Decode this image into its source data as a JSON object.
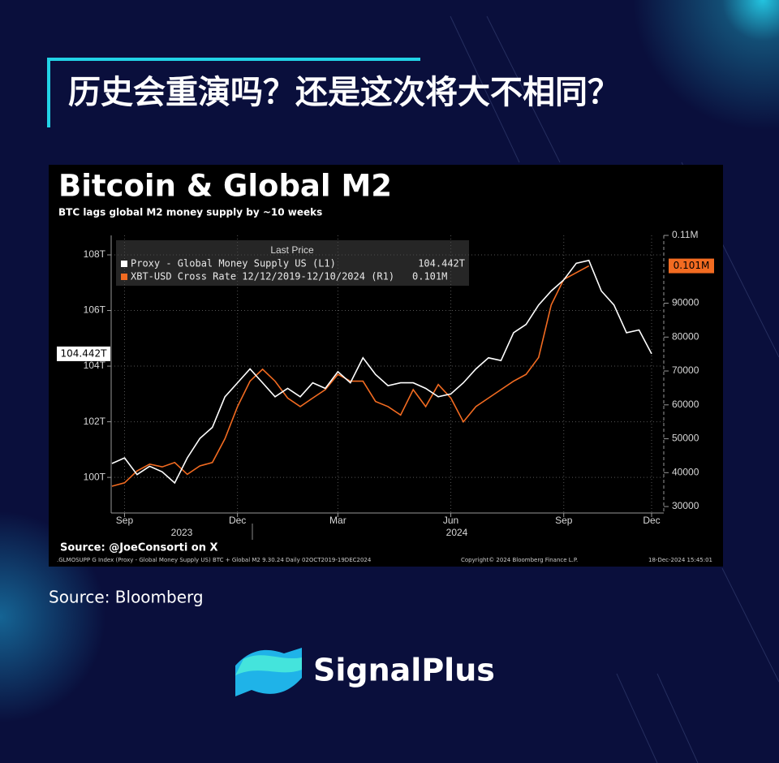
{
  "header": {
    "title": "历史会重演吗？还是这次将大不相同？"
  },
  "chart_data": {
    "type": "line",
    "title": "Bitcoin & Global M2",
    "subtitle": "BTC lags global M2 money supply by ~10 weeks",
    "legend_title": "Last Price",
    "source": "Source: @JoeConsorti on X",
    "footer_left": ".GLMOSUPP G Index (Proxy - Global Money Supply US) BTC + Global M2 9.30.24  Daily 02OCT2019-19DEC2024",
    "footer_center": "Copyright© 2024 Bloomberg Finance L.P.",
    "footer_right": "18-Dec-2024 15:45:01",
    "year_labels": [
      "2023",
      "2024"
    ],
    "categories": [
      null,
      "Sep",
      null,
      null,
      null,
      null,
      null,
      null,
      null,
      null,
      "Dec",
      null,
      null,
      null,
      null,
      null,
      null,
      null,
      "Mar",
      null,
      null,
      null,
      null,
      null,
      null,
      null,
      null,
      "Jun",
      null,
      null,
      null,
      null,
      null,
      null,
      null,
      null,
      "Sep",
      null,
      null,
      null,
      null,
      null,
      null,
      "Dec"
    ],
    "series": [
      {
        "name": "Proxy - Global Money Supply US  (L1)",
        "color": "#ffffff",
        "axis": "y",
        "values": [
          100.5,
          100.7,
          100.1,
          100.4,
          100.2,
          99.8,
          100.7,
          101.4,
          101.8,
          102.9,
          103.4,
          103.9,
          103.4,
          102.9,
          103.2,
          102.9,
          103.4,
          103.2,
          103.8,
          103.4,
          104.3,
          103.7,
          103.3,
          103.4,
          103.4,
          103.2,
          102.9,
          103.0,
          103.4,
          103.9,
          104.3,
          104.2,
          105.2,
          105.5,
          106.2,
          106.7,
          107.1,
          107.7,
          107.8,
          106.7,
          106.2,
          105.2,
          105.3,
          104.442
        ],
        "value_labels": [
          null,
          null,
          null,
          null,
          null,
          null,
          null,
          null,
          null,
          null,
          null,
          null,
          null,
          null,
          null,
          null,
          null,
          null,
          null,
          null,
          null,
          null,
          null,
          null,
          null,
          null,
          null,
          null,
          null,
          null,
          null,
          null,
          null,
          null,
          null,
          null,
          null,
          null,
          null,
          null,
          null,
          null,
          null,
          "104.442T"
        ]
      },
      {
        "name": "XBT-USD Cross Rate 12/12/2019-12/10/2024  (R1)",
        "color": "#f26b21",
        "axis": "y2",
        "values": [
          36000,
          37000,
          40500,
          42500,
          41700,
          43000,
          39500,
          42000,
          43000,
          50000,
          59500,
          67000,
          70500,
          67000,
          62000,
          59500,
          62000,
          64500,
          69000,
          67000,
          67000,
          61000,
          59500,
          57000,
          64500,
          59500,
          66000,
          62000,
          55000,
          59500,
          62000,
          64500,
          67000,
          69000,
          74000,
          89500,
          97000,
          99000,
          101000,
          null,
          null,
          null,
          null,
          null
        ],
        "value_labels": [
          null,
          null,
          null,
          null,
          null,
          null,
          null,
          null,
          null,
          null,
          null,
          null,
          null,
          null,
          null,
          null,
          null,
          null,
          null,
          null,
          null,
          null,
          null,
          null,
          null,
          null,
          null,
          null,
          null,
          null,
          null,
          null,
          null,
          null,
          null,
          null,
          null,
          null,
          "0.101M",
          null,
          null,
          null,
          null,
          null
        ]
      }
    ],
    "ylim": [
      98.72,
      108.7
    ],
    "yticks": [
      {
        "value": 100,
        "label": "100T"
      },
      {
        "value": 102,
        "label": "102T"
      },
      {
        "value": 104,
        "label": "104T"
      },
      {
        "value": 106,
        "label": "106T"
      },
      {
        "value": 108,
        "label": "108T"
      }
    ],
    "y2lim": [
      28100,
      110000
    ],
    "y2ticks": [
      30000,
      40000,
      50000,
      60000,
      70000,
      80000,
      90000,
      {
        "value": 110000,
        "label": "0.11M"
      }
    ],
    "grid": true
  },
  "source": "Source: Bloomberg",
  "brand": "SignalPlus"
}
